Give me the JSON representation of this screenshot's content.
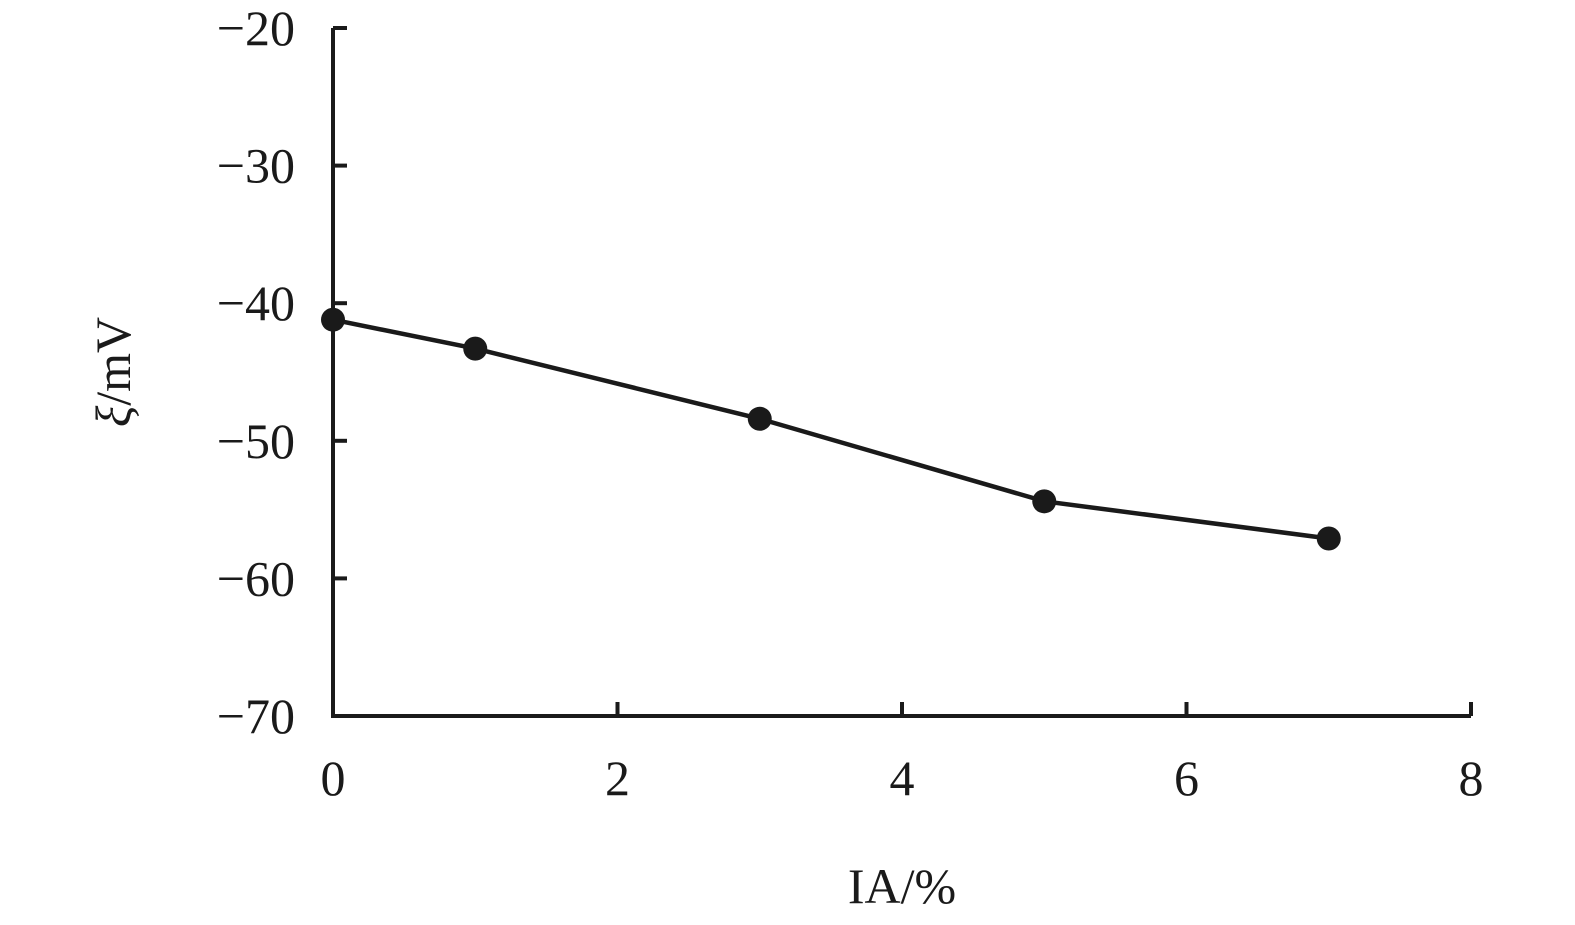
{
  "chart_data": {
    "type": "line",
    "title": "",
    "xlabel": "IA/%",
    "ylabel_symbol": "ξ",
    "ylabel_unit": "/mV",
    "xlim": [
      0,
      8
    ],
    "ylim": [
      -70,
      -20
    ],
    "xticks": [
      0,
      2,
      4,
      6,
      8
    ],
    "yticks": [
      -20,
      -30,
      -40,
      -50,
      -60,
      -70
    ],
    "grid": false,
    "legend": "none",
    "series": [
      {
        "x": [
          0,
          1,
          3,
          5,
          7
        ],
        "y": [
          -41.2,
          -43.3,
          -48.4,
          -54.4,
          -57.1
        ]
      }
    ],
    "colors": {
      "line": "#1a1a1a",
      "marker": "#1a1a1a"
    }
  }
}
